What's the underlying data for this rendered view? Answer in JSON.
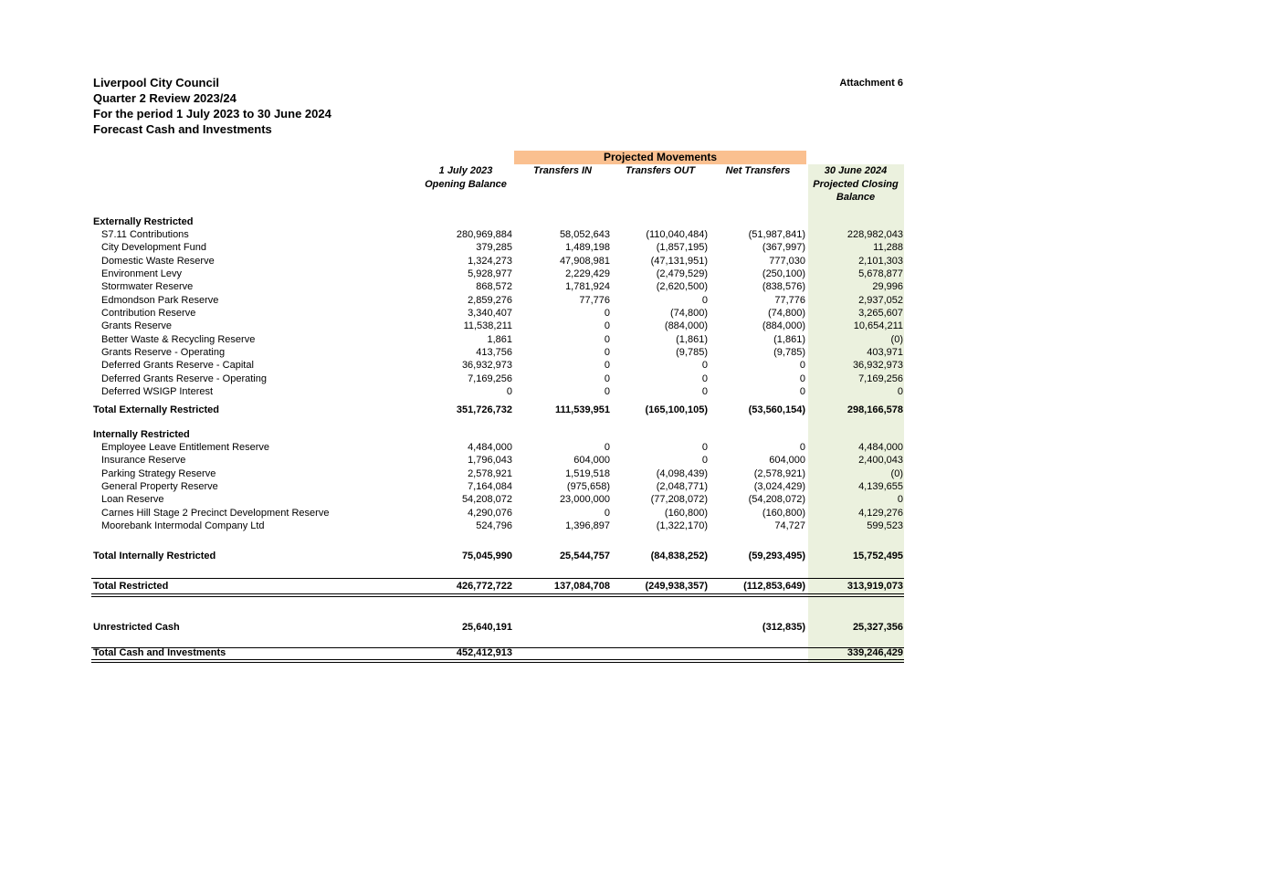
{
  "header": {
    "title_lines": [
      "Liverpool City Council",
      "Quarter 2 Review 2023/24",
      "For the period 1 July 2023 to 30 June 2024",
      "Forecast Cash and Investments"
    ],
    "attachment": "Attachment 6"
  },
  "table": {
    "group_header": "Projected Movements",
    "columns": [
      [
        "1 July 2023",
        "Opening Balance"
      ],
      [
        "Transfers IN"
      ],
      [
        "Transfers OUT"
      ],
      [
        "Net Transfers"
      ],
      [
        "30 June 2024",
        "Projected Closing",
        "Balance"
      ]
    ],
    "sections": [
      {
        "heading": "Externally Restricted",
        "rows": [
          {
            "label": "S7.11 Contributions",
            "values": [
              "280,969,884",
              "58,052,643",
              "(110,040,484)",
              "(51,987,841)",
              "228,982,043"
            ]
          },
          {
            "label": "City Development Fund",
            "values": [
              "379,285",
              "1,489,198",
              "(1,857,195)",
              "(367,997)",
              "11,288"
            ]
          },
          {
            "label": "Domestic Waste Reserve",
            "values": [
              "1,324,273",
              "47,908,981",
              "(47,131,951)",
              "777,030",
              "2,101,303"
            ]
          },
          {
            "label": "Environment Levy",
            "values": [
              "5,928,977",
              "2,229,429",
              "(2,479,529)",
              "(250,100)",
              "5,678,877"
            ]
          },
          {
            "label": "Stormwater Reserve",
            "values": [
              "868,572",
              "1,781,924",
              "(2,620,500)",
              "(838,576)",
              "29,996"
            ]
          },
          {
            "label": "Edmondson Park Reserve",
            "values": [
              "2,859,276",
              "77,776",
              "0",
              "77,776",
              "2,937,052"
            ]
          },
          {
            "label": "Contribution Reserve",
            "values": [
              "3,340,407",
              "0",
              "(74,800)",
              "(74,800)",
              "3,265,607"
            ]
          },
          {
            "label": "Grants Reserve",
            "values": [
              "11,538,211",
              "0",
              "(884,000)",
              "(884,000)",
              "10,654,211"
            ]
          },
          {
            "label": "Better Waste & Recycling Reserve",
            "values": [
              "1,861",
              "0",
              "(1,861)",
              "(1,861)",
              "(0)"
            ]
          },
          {
            "label": "Grants Reserve - Operating",
            "values": [
              "413,756",
              "0",
              "(9,785)",
              "(9,785)",
              "403,971"
            ]
          },
          {
            "label": "Deferred Grants Reserve - Capital",
            "values": [
              "36,932,973",
              "0",
              "0",
              "0",
              "36,932,973"
            ]
          },
          {
            "label": "Deferred Grants Reserve - Operating",
            "values": [
              "7,169,256",
              "0",
              "0",
              "0",
              "7,169,256"
            ]
          },
          {
            "label": "Deferred WSIGP Interest",
            "values": [
              "0",
              "0",
              "0",
              "0",
              "0"
            ]
          }
        ],
        "total": {
          "label": "Total Externally Restricted",
          "values": [
            "351,726,732",
            "111,539,951",
            "(165,100,105)",
            "(53,560,154)",
            "298,166,578"
          ]
        }
      },
      {
        "heading": "Internally Restricted",
        "rows": [
          {
            "label": "Employee Leave Entitlement Reserve",
            "values": [
              "4,484,000",
              "0",
              "0",
              "0",
              "4,484,000"
            ]
          },
          {
            "label": "Insurance Reserve",
            "values": [
              "1,796,043",
              "604,000",
              "0",
              "604,000",
              "2,400,043"
            ]
          },
          {
            "label": "Parking Strategy Reserve",
            "values": [
              "2,578,921",
              "1,519,518",
              "(4,098,439)",
              "(2,578,921)",
              "(0)"
            ]
          },
          {
            "label": "General Property Reserve",
            "values": [
              "7,164,084",
              "(975,658)",
              "(2,048,771)",
              "(3,024,429)",
              "4,139,655"
            ]
          },
          {
            "label": "Loan Reserve",
            "values": [
              "54,208,072",
              "23,000,000",
              "(77,208,072)",
              "(54,208,072)",
              "0"
            ]
          },
          {
            "label": "Carnes Hill Stage 2 Precinct Development Reserve",
            "values": [
              "4,290,076",
              "0",
              "(160,800)",
              "(160,800)",
              "4,129,276"
            ]
          },
          {
            "label": "Moorebank Intermodal Company Ltd",
            "values": [
              "524,796",
              "1,396,897",
              "(1,322,170)",
              "74,727",
              "599,523"
            ]
          }
        ],
        "total": {
          "label": "Total Internally Restricted",
          "values": [
            "75,045,990",
            "25,544,757",
            "(84,838,252)",
            "(59,293,495)",
            "15,752,495"
          ]
        }
      }
    ],
    "summary": [
      {
        "label": "Total Restricted",
        "values": [
          "426,772,722",
          "137,084,708",
          "(249,938,357)",
          "(112,853,649)",
          "313,919,073"
        ]
      },
      {
        "label": "Unrestricted Cash",
        "values": [
          "25,640,191",
          null,
          null,
          "(312,835)",
          "25,327,356"
        ]
      },
      {
        "label": "Total Cash and Investments",
        "values": [
          "452,412,913",
          null,
          null,
          null,
          "339,246,429"
        ]
      }
    ]
  }
}
